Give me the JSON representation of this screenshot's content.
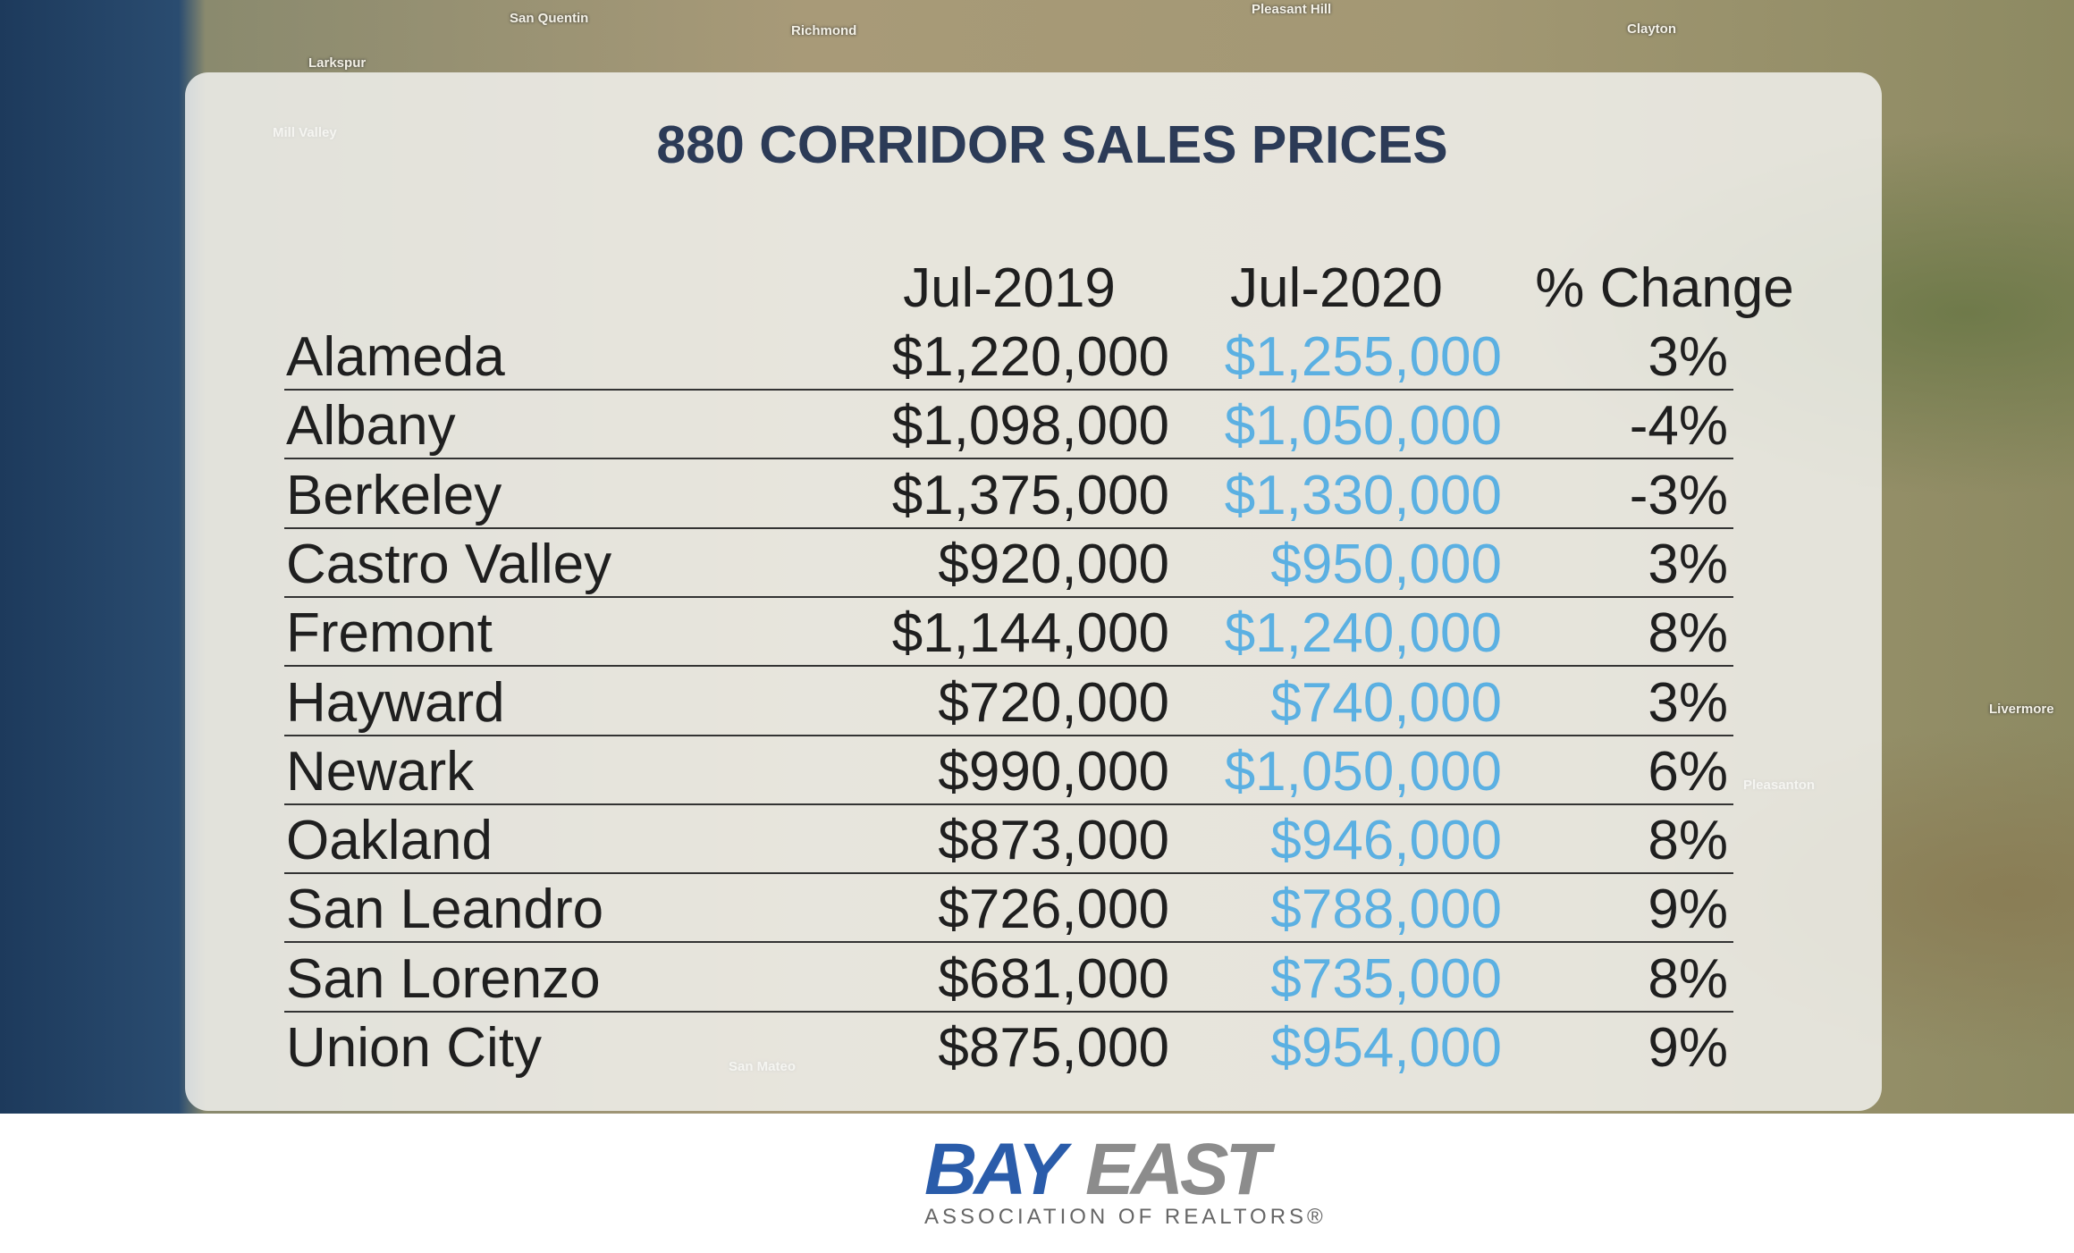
{
  "title": "880 CORRIDOR SALES PRICES",
  "table": {
    "headers": [
      "Jul-2019",
      "Jul-2020",
      "% Change"
    ],
    "rows": [
      [
        "Alameda",
        "$1,220,000",
        "$1,255,000",
        "3%"
      ],
      [
        "Albany",
        "$1,098,000",
        "$1,050,000",
        "-4%"
      ],
      [
        "Berkeley",
        "$1,375,000",
        "$1,330,000",
        "-3%"
      ],
      [
        "Castro Valley",
        "$920,000",
        "$950,000",
        "3%"
      ],
      [
        "Fremont",
        "$1,144,000",
        "$1,240,000",
        "8%"
      ],
      [
        "Hayward",
        "$720,000",
        "$740,000",
        "3%"
      ],
      [
        "Newark",
        "$990,000",
        "$1,050,000",
        "6%"
      ],
      [
        "Oakland",
        "$873,000",
        "$946,000",
        "8%"
      ],
      [
        "San Leandro",
        "$726,000",
        "$788,000",
        "9%"
      ],
      [
        "San Lorenzo",
        "$681,000",
        "$735,000",
        "8%"
      ],
      [
        "Union City",
        "$875,000",
        "$954,000",
        "9%"
      ]
    ]
  },
  "map_labels": [
    "San Quentin",
    "Richmond",
    "Pleasant Hill",
    "Clayton",
    "Larkspur",
    "Mill Valley",
    "Pleasanton",
    "Livermore",
    "San Mateo"
  ],
  "logo": {
    "bay": "BAY",
    "east": "EAST",
    "tagline": "ASSOCIATION OF REALTORS®"
  }
}
